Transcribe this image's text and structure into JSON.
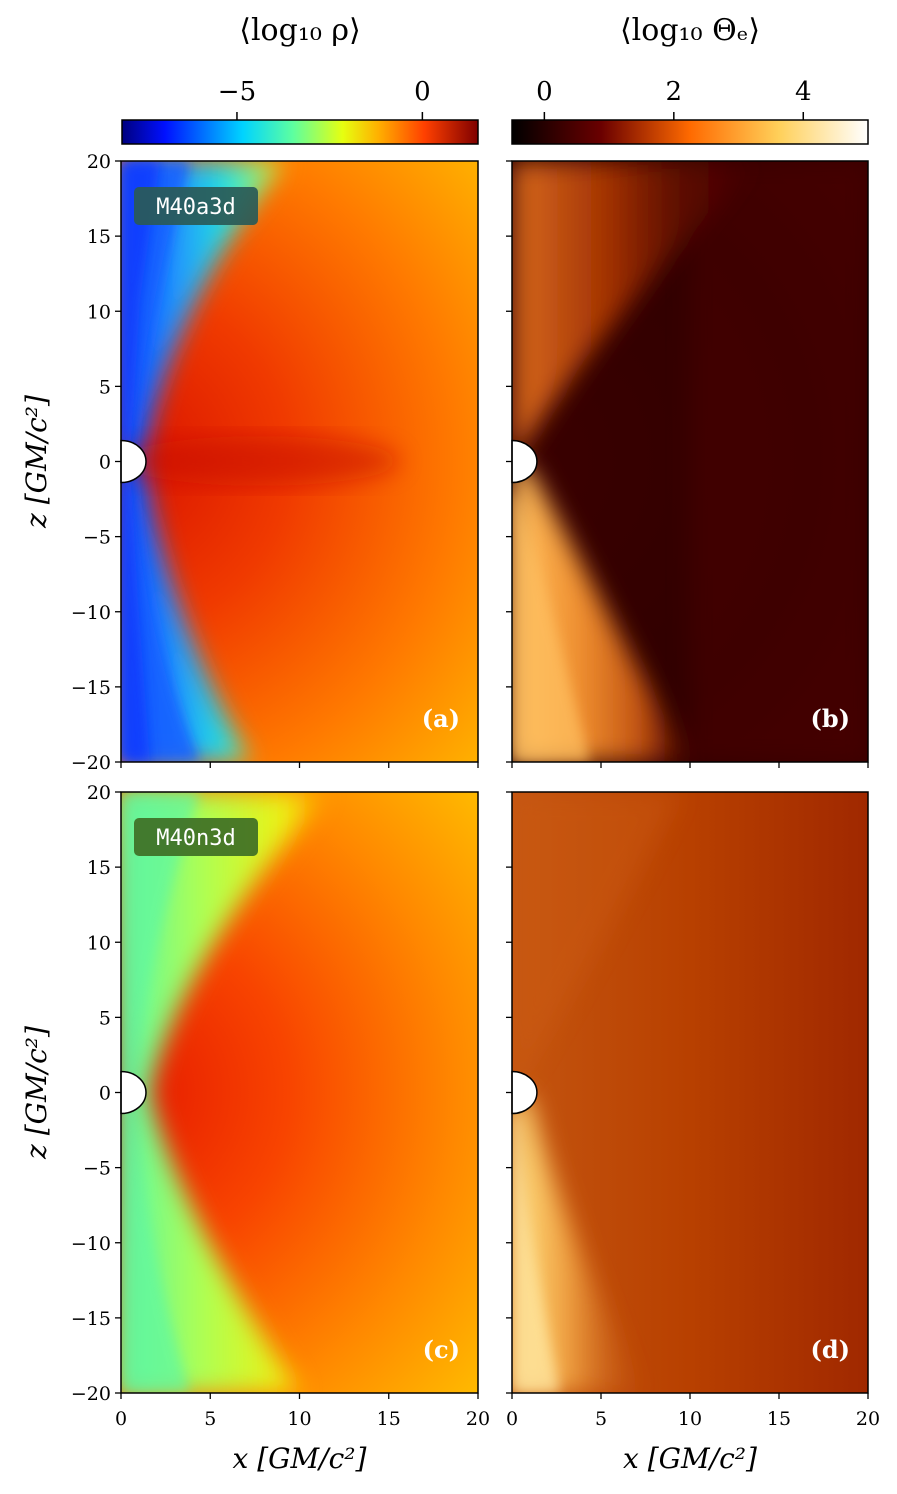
{
  "chart_data": {
    "type": "heatmap",
    "layout": "2x2 panels",
    "colorbars": [
      {
        "title": "⟨log₁₀ ρ⟩",
        "colormap": "jet",
        "range": [
          -8.1,
          1.5
        ],
        "ticks": [
          -5,
          0
        ],
        "tick_labels": [
          "−5",
          "0"
        ]
      },
      {
        "title": "⟨log₁₀ Θₑ⟩",
        "colormap": "afmhot",
        "range": [
          -0.5,
          5.0
        ],
        "ticks": [
          0,
          2,
          4
        ],
        "tick_labels": [
          "0",
          "2",
          "4"
        ]
      }
    ],
    "x_axis": {
      "label": "x [GM/c²]",
      "range": [
        0,
        20
      ],
      "ticks": [
        0,
        5,
        10,
        15,
        20
      ]
    },
    "z_axis": {
      "label": "z [GM/c²]",
      "range": [
        -20,
        20
      ],
      "ticks": [
        20,
        15,
        10,
        5,
        0,
        -5,
        -10,
        -15,
        -20
      ],
      "tick_labels": [
        "20",
        "15",
        "10",
        "5",
        "0",
        "−5",
        "−10",
        "−15",
        "−20"
      ]
    },
    "black_hole": {
      "shape": "half-disk",
      "center": [
        0,
        0
      ],
      "radius_GM_c2": 1.4
    },
    "panels": [
      {
        "id": "a",
        "label": "(a)",
        "quantity": "⟨log₁₀ ρ⟩",
        "model": "M40a3d",
        "row": 0,
        "col": 0
      },
      {
        "id": "b",
        "label": "(b)",
        "quantity": "⟨log₁₀ Θₑ⟩",
        "model": "",
        "row": 0,
        "col": 1
      },
      {
        "id": "c",
        "label": "(c)",
        "quantity": "⟨log₁₀ ρ⟩",
        "model": "M40n3d",
        "row": 1,
        "col": 0
      },
      {
        "id": "d",
        "label": "(d)",
        "quantity": "⟨log₁₀ Θₑ⟩",
        "model": "",
        "row": 1,
        "col": 1
      }
    ]
  },
  "colors": {
    "model_box_a": "#2a5a57",
    "model_box_c": "#3f6f25"
  }
}
